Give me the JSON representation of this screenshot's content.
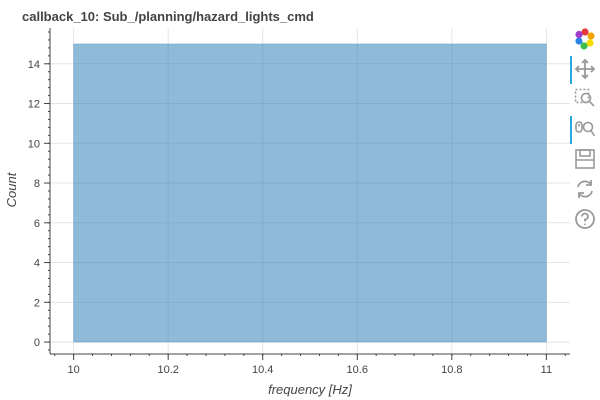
{
  "chart_data": {
    "type": "bar",
    "title": "callback_10: Sub_/planning/hazard_lights_cmd",
    "xlabel": "frequency [Hz]",
    "ylabel": "Count",
    "bins": [
      {
        "x_start": 10,
        "x_end": 11,
        "count": 15
      }
    ],
    "xlim": [
      9.95,
      11.05
    ],
    "ylim": [
      -0.6,
      15.8
    ],
    "x_ticks": [
      "10",
      "10.2",
      "10.4",
      "10.6",
      "10.8",
      "11"
    ],
    "y_ticks": [
      "0",
      "2",
      "4",
      "6",
      "8",
      "10",
      "12",
      "14"
    ],
    "bar_color": "#1f77b4",
    "bar_alpha": 0.5,
    "grid": true
  },
  "toolbar": {
    "tools": [
      "bokeh-logo-icon",
      "pan-icon",
      "box-zoom-icon",
      "wheel-zoom-icon",
      "save-icon",
      "reset-icon",
      "help-icon"
    ],
    "active_color": "#26aae1"
  }
}
